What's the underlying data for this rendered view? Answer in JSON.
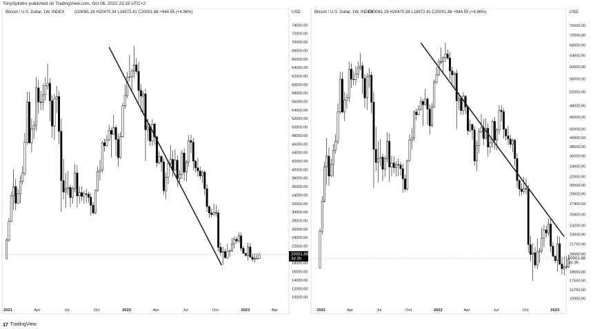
{
  "header": {
    "publisher": "TonySpilotro published on TradingView.com, Oct 06, 2022 23:15 UTC+2"
  },
  "footer": {
    "brand": "TradingView"
  },
  "colors": {
    "background": "#ffffff",
    "candle": "#000000",
    "trendline": "#222222",
    "axis_text": "#131722",
    "price_tag": "#000000",
    "border": "#d1d4dc"
  },
  "chart_data": [
    {
      "type": "candlestick",
      "symbol_label": "Bitcoin / U.S. Dollar, 1W, INDEX",
      "ohlc_label": "O19061.28  H20470.34  L18972.41  C20001.88  +944.55 (+4.96%)",
      "currency": "USD",
      "scale": "linear",
      "x_ticks": [
        {
          "label": "2021",
          "date": "2021-01-01"
        },
        {
          "label": "Apr",
          "date": "2021-04-01"
        },
        {
          "label": "Jul",
          "date": "2021-07-01"
        },
        {
          "label": "Oct",
          "date": "2021-10-01"
        },
        {
          "label": "2022",
          "date": "2022-01-01"
        },
        {
          "label": "Apr",
          "date": "2022-04-01"
        },
        {
          "label": "Jul",
          "date": "2022-07-01"
        },
        {
          "label": "Oct",
          "date": "2022-10-01"
        },
        {
          "label": "2023",
          "date": "2023-01-01"
        },
        {
          "label": "Apr",
          "date": "2023-04-01"
        }
      ],
      "xlim": [
        "2020-12-14",
        "2023-05-15"
      ],
      "y_ticks": [
        {
          "label": "74000.00",
          "value": 74000
        },
        {
          "label": "72000.00",
          "value": 72000
        },
        {
          "label": "70000.00",
          "value": 70000
        },
        {
          "label": "68000.00",
          "value": 68000
        },
        {
          "label": "66000.00",
          "value": 66000
        },
        {
          "label": "64000.00",
          "value": 64000
        },
        {
          "label": "62000.00",
          "value": 62000
        },
        {
          "label": "60000.00",
          "value": 60000
        },
        {
          "label": "58000.00",
          "value": 58000
        },
        {
          "label": "56000.00",
          "value": 56000
        },
        {
          "label": "54000.00",
          "value": 54000
        },
        {
          "label": "52000.00",
          "value": 52000
        },
        {
          "label": "50000.00",
          "value": 50000
        },
        {
          "label": "48000.00",
          "value": 48000
        },
        {
          "label": "46000.00",
          "value": 46000
        },
        {
          "label": "44000.00",
          "value": 44000
        },
        {
          "label": "42000.00",
          "value": 42000
        },
        {
          "label": "40000.00",
          "value": 40000
        },
        {
          "label": "38000.00",
          "value": 38000
        },
        {
          "label": "36000.00",
          "value": 36000
        },
        {
          "label": "34000.00",
          "value": 34000
        },
        {
          "label": "32000.00",
          "value": 32000
        },
        {
          "label": "30000.00",
          "value": 30000
        },
        {
          "label": "28000.00",
          "value": 28000
        },
        {
          "label": "26000.00",
          "value": 26000
        },
        {
          "label": "24000.00",
          "value": 24000
        },
        {
          "label": "22000.00",
          "value": 22000
        },
        {
          "label": "18000.00",
          "value": 18000
        },
        {
          "label": "16000.00",
          "value": 16000
        },
        {
          "label": "14000.00",
          "value": 14000
        },
        {
          "label": "12000.00",
          "value": 12000
        },
        {
          "label": "10000.00",
          "value": 10000
        }
      ],
      "ylim": [
        8000,
        76000
      ],
      "last_price": {
        "value": 20001.88,
        "label": "20001.88",
        "countdown": "3d 3h"
      },
      "trendline": [
        {
          "date": "2021-11-08",
          "value": 68800
        },
        {
          "date": "2022-10-20",
          "value": 17500
        }
      ]
    },
    {
      "type": "candlestick",
      "symbol_label": "Bitcoin / U.S. Dollar, 1W, INDEX",
      "ohlc_label": "O19061.28  H20470.34  L18972.41  C20001.88  +944.55 (+4.96%)",
      "currency": "USD",
      "scale": "log",
      "x_ticks": [
        {
          "label": "2021",
          "date": "2021-01-01"
        },
        {
          "label": "Apr",
          "date": "2021-04-01"
        },
        {
          "label": "Jul",
          "date": "2021-07-01"
        },
        {
          "label": "Oct",
          "date": "2021-10-01"
        },
        {
          "label": "2022",
          "date": "2022-01-01"
        },
        {
          "label": "Apr",
          "date": "2022-04-01"
        },
        {
          "label": "Jul",
          "date": "2022-07-01"
        },
        {
          "label": "Oct",
          "date": "2022-10-01"
        },
        {
          "label": "2023",
          "date": "2023-01-01"
        }
      ],
      "xlim": [
        "2020-11-30",
        "2023-02-05"
      ],
      "y_ticks": [
        {
          "label": "76000.00",
          "value": 76000
        },
        {
          "label": "72000.00",
          "value": 72000
        },
        {
          "label": "68000.00",
          "value": 68000
        },
        {
          "label": "64000.00",
          "value": 64000
        },
        {
          "label": "60000.00",
          "value": 60000
        },
        {
          "label": "56000.00",
          "value": 56000
        },
        {
          "label": "52000.00",
          "value": 52000
        },
        {
          "label": "48000.00",
          "value": 48000
        },
        {
          "label": "45000.00",
          "value": 45000
        },
        {
          "label": "42000.00",
          "value": 42000
        },
        {
          "label": "40000.00",
          "value": 40000
        },
        {
          "label": "38000.00",
          "value": 38000
        },
        {
          "label": "36000.00",
          "value": 36000
        },
        {
          "label": "34000.00",
          "value": 34000
        },
        {
          "label": "32000.00",
          "value": 32000
        },
        {
          "label": "30500.00",
          "value": 30500
        },
        {
          "label": "29000.00",
          "value": 29000
        },
        {
          "label": "27400.00",
          "value": 27400
        },
        {
          "label": "25800.00",
          "value": 25800
        },
        {
          "label": "24200.00",
          "value": 24200
        },
        {
          "label": "23000.00",
          "value": 23000
        },
        {
          "label": "21750.00",
          "value": 21750
        },
        {
          "label": "20550.00",
          "value": 20550
        },
        {
          "label": "18550.00",
          "value": 18550
        },
        {
          "label": "17650.00",
          "value": 17650
        },
        {
          "label": "16750.00",
          "value": 16750
        },
        {
          "label": "15950.00",
          "value": 15950
        }
      ],
      "ylim": [
        15300,
        80000
      ],
      "last_price": {
        "value": 20001.88,
        "label": "20001.88",
        "countdown": "3d 3h"
      },
      "trendline": [
        {
          "date": "2021-11-08",
          "value": 68800
        },
        {
          "date": "2023-01-30",
          "value": 22700
        }
      ]
    }
  ],
  "weekly_bars": [
    [
      19000,
      23800,
      18900,
      23400
    ],
    [
      23400,
      28600,
      23000,
      27800
    ],
    [
      27800,
      34800,
      27600,
      33800
    ],
    [
      33800,
      40000,
      30500,
      36000
    ],
    [
      36000,
      37800,
      30400,
      32100
    ],
    [
      32100,
      35500,
      31900,
      34300
    ],
    [
      34300,
      38600,
      32000,
      37200
    ],
    [
      37200,
      40800,
      36500,
      39200
    ],
    [
      39200,
      48600,
      38500,
      46400
    ],
    [
      46400,
      58300,
      45800,
      55900
    ],
    [
      55900,
      58300,
      46000,
      46300
    ],
    [
      46300,
      52000,
      44000,
      49600
    ],
    [
      49600,
      51500,
      47200,
      50400
    ],
    [
      50400,
      61700,
      49000,
      59200
    ],
    [
      59200,
      61200,
      53100,
      55900
    ],
    [
      55900,
      58600,
      54000,
      55800
    ],
    [
      55800,
      60200,
      54000,
      57600
    ],
    [
      57600,
      61800,
      56200,
      59700
    ],
    [
      59700,
      64900,
      58800,
      60300
    ],
    [
      60300,
      61500,
      51400,
      56200
    ],
    [
      56200,
      57500,
      47500,
      50200
    ],
    [
      50200,
      57800,
      46900,
      56600
    ],
    [
      56600,
      59600,
      53300,
      57200
    ],
    [
      57200,
      58400,
      46000,
      49000
    ],
    [
      49000,
      52000,
      30000,
      37400
    ],
    [
      37400,
      42500,
      33000,
      34700
    ],
    [
      34700,
      39200,
      31000,
      35500
    ],
    [
      35500,
      39700,
      34000,
      35800
    ],
    [
      35800,
      36500,
      31200,
      33400
    ],
    [
      33400,
      36000,
      32000,
      35500
    ],
    [
      35500,
      41300,
      34700,
      39200
    ],
    [
      39200,
      41000,
      31000,
      33800
    ],
    [
      33800,
      36000,
      32000,
      34600
    ],
    [
      34600,
      36000,
      32600,
      33700
    ],
    [
      33700,
      35000,
      32000,
      34300
    ],
    [
      34300,
      35500,
      32100,
      34200
    ],
    [
      34200,
      34800,
      32200,
      33500
    ],
    [
      33500,
      34500,
      29200,
      31600
    ],
    [
      31600,
      32400,
      29400,
      29800
    ],
    [
      29800,
      35300,
      29500,
      35100
    ],
    [
      35100,
      40800,
      34800,
      39500
    ],
    [
      39500,
      42300,
      37400,
      39900
    ],
    [
      39900,
      46700,
      39200,
      46300
    ],
    [
      46300,
      47200,
      44200,
      45600
    ],
    [
      45600,
      48100,
      45400,
      47000
    ],
    [
      47000,
      50500,
      46700,
      49200
    ],
    [
      49200,
      49900,
      42800,
      48300
    ],
    [
      48300,
      52900,
      48100,
      49900
    ],
    [
      49900,
      50500,
      43100,
      47100
    ],
    [
      47100,
      48400,
      40700,
      42800
    ],
    [
      42800,
      48800,
      42500,
      47700
    ],
    [
      47700,
      55700,
      47500,
      55000
    ],
    [
      55000,
      60000,
      54300,
      57400
    ],
    [
      57400,
      62900,
      56800,
      61700
    ],
    [
      61700,
      67000,
      60800,
      61800
    ],
    [
      61800,
      63700,
      58100,
      63200
    ],
    [
      63200,
      69000,
      61500,
      64600
    ],
    [
      64600,
      66300,
      62400,
      63100
    ],
    [
      63100,
      65300,
      55700,
      58600
    ],
    [
      58600,
      60000,
      53600,
      57300
    ],
    [
      57300,
      58500,
      53000,
      57800
    ],
    [
      57800,
      59000,
      42000,
      49400
    ],
    [
      49400,
      51900,
      46900,
      50100
    ],
    [
      50100,
      50800,
      45600,
      46700
    ],
    [
      46700,
      51900,
      45600,
      50700
    ],
    [
      50700,
      51000,
      45800,
      47700
    ],
    [
      47700,
      48000,
      40600,
      41600
    ],
    [
      41600,
      44300,
      41200,
      43100
    ],
    [
      43100,
      43400,
      39500,
      41800
    ],
    [
      41800,
      42600,
      34000,
      35000
    ],
    [
      35000,
      39300,
      33000,
      38200
    ],
    [
      38200,
      42200,
      36600,
      41400
    ],
    [
      41400,
      45800,
      41000,
      42400
    ],
    [
      42400,
      44500,
      38300,
      39800
    ],
    [
      39800,
      44700,
      39700,
      42200
    ],
    [
      42200,
      43400,
      35900,
      37900
    ],
    [
      37900,
      39800,
      36600,
      38800
    ],
    [
      38800,
      44500,
      37800,
      43900
    ],
    [
      43900,
      45000,
      37400,
      39400
    ],
    [
      39400,
      42200,
      37200,
      41800
    ],
    [
      41800,
      48100,
      40700,
      46800
    ],
    [
      46800,
      48200,
      43900,
      46400
    ],
    [
      46400,
      47400,
      39800,
      42000
    ],
    [
      42000,
      42300,
      39300,
      40400
    ],
    [
      40400,
      42800,
      38300,
      39700
    ],
    [
      39700,
      40700,
      37700,
      38500
    ],
    [
      38500,
      39800,
      36800,
      39400
    ],
    [
      39400,
      39800,
      34000,
      35500
    ],
    [
      35500,
      36600,
      30000,
      31300
    ],
    [
      31300,
      31500,
      28600,
      29800
    ],
    [
      29800,
      30800,
      28700,
      29400
    ],
    [
      29400,
      32000,
      29000,
      29900
    ],
    [
      29900,
      31700,
      28900,
      29800
    ],
    [
      29800,
      30500,
      20700,
      21700
    ],
    [
      21700,
      22800,
      19700,
      20500
    ],
    [
      20500,
      21800,
      17600,
      20700
    ],
    [
      20700,
      21400,
      19000,
      19300
    ],
    [
      19300,
      22500,
      18900,
      20800
    ],
    [
      20800,
      21300,
      19500,
      20900
    ],
    [
      20900,
      23900,
      20600,
      22500
    ],
    [
      22500,
      24300,
      21400,
      23600
    ],
    [
      23600,
      24200,
      22600,
      23200
    ],
    [
      23200,
      25200,
      22800,
      24400
    ],
    [
      24400,
      25200,
      20800,
      21500
    ],
    [
      21500,
      22000,
      20200,
      20300
    ],
    [
      20300,
      20400,
      19500,
      19800
    ],
    [
      19800,
      22800,
      18600,
      21800
    ],
    [
      21800,
      22700,
      19300,
      19400
    ],
    [
      19400,
      20200,
      18300,
      18900
    ],
    [
      18900,
      20300,
      18200,
      19100
    ],
    [
      19100,
      20300,
      18900,
      19100
    ],
    [
      19100,
      20470,
      18972,
      20002
    ]
  ],
  "weekly_bars_start": "2020-12-28"
}
